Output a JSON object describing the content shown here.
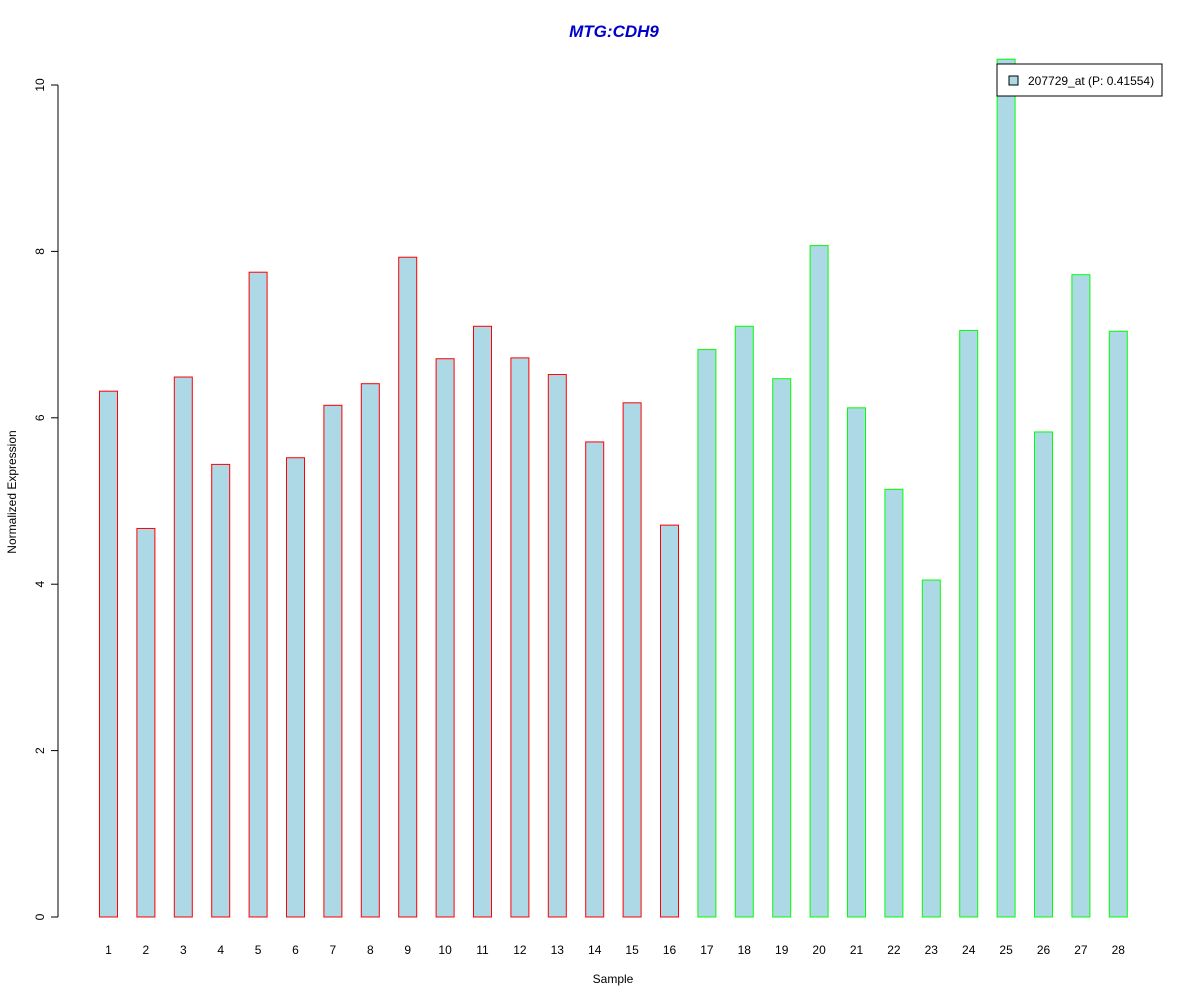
{
  "chart_data": {
    "type": "bar",
    "title": "MTG:CDH9",
    "xlabel": "Sample",
    "ylabel": "Normalized Expression",
    "ylim": [
      0,
      10.3
    ],
    "yticks": [
      0,
      2,
      4,
      6,
      8,
      10
    ],
    "grid": false,
    "legend": {
      "placement": "top-right",
      "entries": [
        {
          "label": "207729_at (P: 0.41554)",
          "fill": "#add8e6"
        }
      ]
    },
    "categories": [
      "1",
      "2",
      "3",
      "4",
      "5",
      "6",
      "7",
      "8",
      "9",
      "10",
      "11",
      "12",
      "13",
      "14",
      "15",
      "16",
      "17",
      "18",
      "19",
      "20",
      "21",
      "22",
      "23",
      "24",
      "25",
      "26",
      "27",
      "28"
    ],
    "series": [
      {
        "values": [
          6.32,
          4.67,
          6.49,
          5.44,
          7.75,
          5.52,
          6.15,
          6.41,
          7.93,
          6.71,
          7.1,
          6.72,
          6.52,
          5.71,
          6.18,
          4.71,
          6.82,
          7.1,
          6.47,
          8.07,
          6.12,
          5.14,
          4.05,
          7.05,
          10.31,
          5.83,
          7.72,
          7.04
        ]
      }
    ],
    "colors": {
      "bar_fill": "#add8e6",
      "group1_border": "#ff0000",
      "group2_border": "#00ff00",
      "title": "#0000cc"
    },
    "groups": [
      {
        "samples": [
          1,
          16
        ],
        "border": "#ff0000"
      },
      {
        "samples": [
          17,
          28
        ],
        "border": "#00ff00"
      }
    ]
  }
}
